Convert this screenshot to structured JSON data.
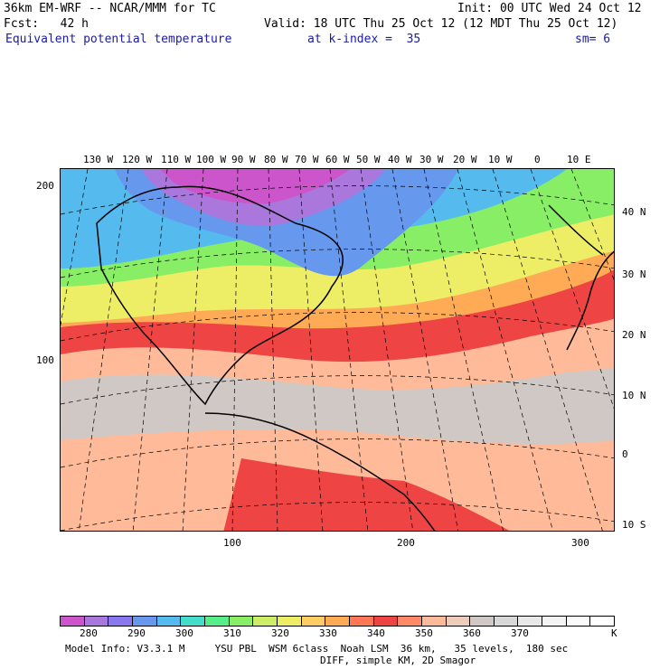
{
  "header": {
    "model": "36km EM-WRF -- NCAR/MMM for TC",
    "init": "Init: 00 UTC Wed 24 Oct 12",
    "fcst": "Fcst:   42 h",
    "valid": "Valid: 18 UTC Thu 25 Oct 12 (12 MDT Thu 25 Oct 12)",
    "field": "Equivalent potential temperature",
    "level": "at k-index =  35",
    "smooth": "sm= 6"
  },
  "map": {
    "lon_labels": [
      "130 W",
      "120 W",
      "110 W",
      "100 W",
      "90 W",
      "80 W",
      "70 W",
      "60 W",
      "50 W",
      "40 W",
      "30 W",
      "20 W",
      "10 W",
      "0",
      "10 E"
    ],
    "lat_labels": [
      "40 N",
      "30 N",
      "20 N",
      "10 N",
      "0",
      "10 S"
    ],
    "y_grid_labels": [
      "200",
      "100"
    ],
    "x_grid_labels": [
      "100",
      "200",
      "300"
    ]
  },
  "colorbar": {
    "colors": [
      "#cc55cc",
      "#aa77dd",
      "#8877ee",
      "#6699ee",
      "#55bbee",
      "#44ddcc",
      "#55ee88",
      "#88ee66",
      "#ccee66",
      "#eeee66",
      "#ffcc66",
      "#ffaa55",
      "#ff7755",
      "#ee4444",
      "#ff8866",
      "#ffbb99",
      "#eeccbb",
      "#d0c8c4",
      "#d8d8d8",
      "#e8e8e8",
      "#f4f4f4",
      "#fafafa",
      "#ffffff"
    ],
    "tick_labels": [
      "280",
      "290",
      "300",
      "310",
      "320",
      "330",
      "340",
      "350",
      "360",
      "370"
    ],
    "unit": "K"
  },
  "footer": {
    "line1": "Model Info: V3.3.1 M     YSU PBL  WSM 6class  Noah LSM  36 km,   35 levels,  180 sec",
    "line2": "DIFF, simple KM, 2D Smagor"
  }
}
